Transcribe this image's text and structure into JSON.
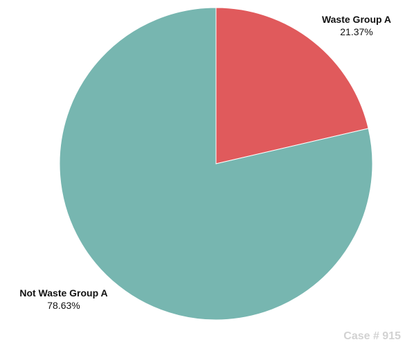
{
  "chart_data": {
    "type": "pie",
    "slices": [
      {
        "label": "Waste Group A",
        "value": 21.37,
        "value_label": "21.37%",
        "color": "#e05a5c"
      },
      {
        "label": "Not Waste Group A",
        "value": 78.63,
        "value_label": "78.63%",
        "color": "#77b6b0"
      }
    ],
    "start_angle_deg": 0,
    "direction": "clockwise",
    "legend": "none"
  },
  "footer": {
    "case_label": "Case # 915"
  }
}
